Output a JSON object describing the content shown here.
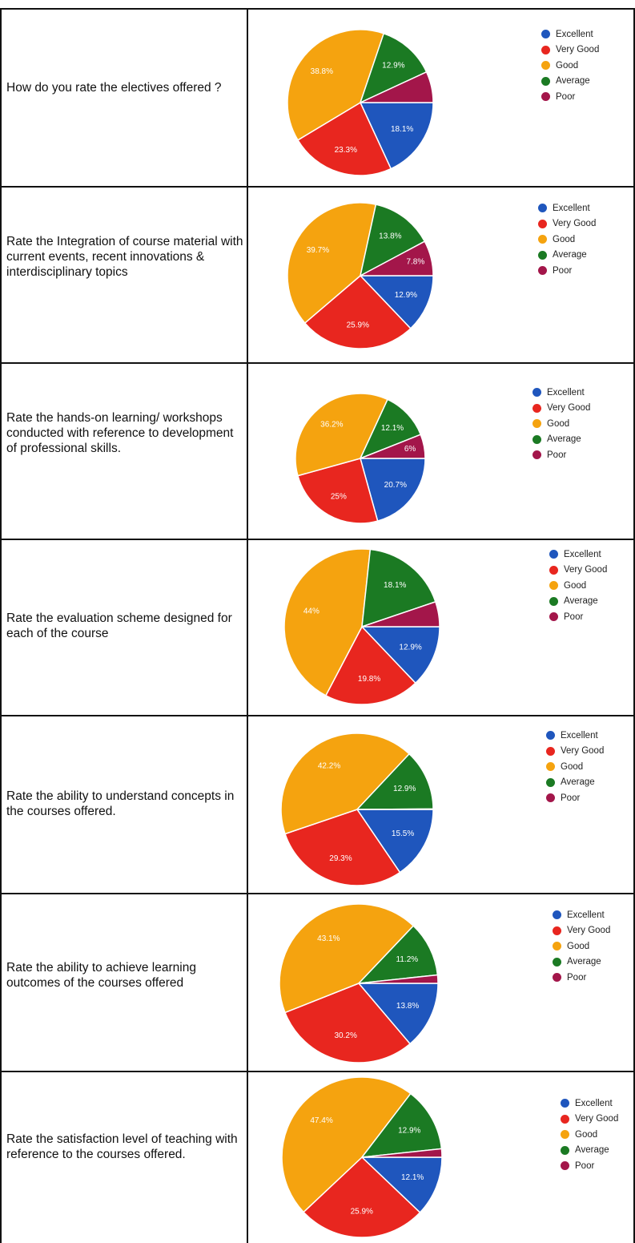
{
  "colors": {
    "excellent": "#1f56bd",
    "very_good": "#e8261f",
    "good": "#f5a30f",
    "average": "#1b7a23",
    "poor": "#a3164a"
  },
  "legend_labels": [
    "Excellent",
    "Very Good",
    "Good",
    "Average",
    "Poor"
  ],
  "chart_data": [
    {
      "type": "pie",
      "title": "How do you rate the electives offered ?",
      "labels": [
        "Excellent",
        "Very Good",
        "Good",
        "Average",
        "Poor"
      ],
      "values": [
        18.1,
        23.3,
        38.8,
        12.9,
        6.9
      ],
      "data_labels": [
        "18.1%",
        "23.3%",
        "38.8%",
        "12.9%",
        ""
      ]
    },
    {
      "type": "pie",
      "title": "Rate the Integration of course material with current events, recent innovations & interdisciplinary topics",
      "labels": [
        "Excellent",
        "Very Good",
        "Good",
        "Average",
        "Poor"
      ],
      "values": [
        12.9,
        25.9,
        39.7,
        13.8,
        7.8
      ],
      "data_labels": [
        "12.9%",
        "25.9%",
        "39.7%",
        "13.8%",
        "7.8%"
      ]
    },
    {
      "type": "pie",
      "title": "Rate the hands-on learning/ workshops conducted with reference to development of professional skills.",
      "labels": [
        "Excellent",
        "Very Good",
        "Good",
        "Average",
        "Poor"
      ],
      "values": [
        20.7,
        25,
        36.2,
        12.1,
        6
      ],
      "data_labels": [
        "20.7%",
        "25%",
        "36.2%",
        "12.1%",
        "6%"
      ]
    },
    {
      "type": "pie",
      "title": "Rate the evaluation scheme designed for each of the course",
      "labels": [
        "Excellent",
        "Very Good",
        "Good",
        "Average",
        "Poor"
      ],
      "values": [
        12.9,
        19.8,
        44,
        18.1,
        5.2
      ],
      "data_labels": [
        "12.9%",
        "19.8%",
        "44%",
        "18.1%",
        ""
      ]
    },
    {
      "type": "pie",
      "title": "Rate the ability to understand concepts in the courses offered.",
      "labels": [
        "Excellent",
        "Very Good",
        "Good",
        "Average",
        "Poor"
      ],
      "values": [
        15.5,
        29.3,
        42.2,
        12.9,
        0.1
      ],
      "data_labels": [
        "15.5%",
        "29.3%",
        "42.2%",
        "12.9%",
        ""
      ]
    },
    {
      "type": "pie",
      "title": "Rate the ability to achieve learning outcomes of the courses offered",
      "labels": [
        "Excellent",
        "Very Good",
        "Good",
        "Average",
        "Poor"
      ],
      "values": [
        13.8,
        30.2,
        43.1,
        11.2,
        1.7
      ],
      "data_labels": [
        "13.8%",
        "30.2%",
        "43.1%",
        "11.2%",
        ""
      ]
    },
    {
      "type": "pie",
      "title": "Rate the satisfaction level of teaching with reference to the courses offered.",
      "labels": [
        "Excellent",
        "Very Good",
        "Good",
        "Average",
        "Poor"
      ],
      "values": [
        12.1,
        25.9,
        47.4,
        12.9,
        1.7
      ],
      "data_labels": [
        "12.1%",
        "25.9%",
        "47.4%",
        "12.9%",
        ""
      ]
    }
  ]
}
